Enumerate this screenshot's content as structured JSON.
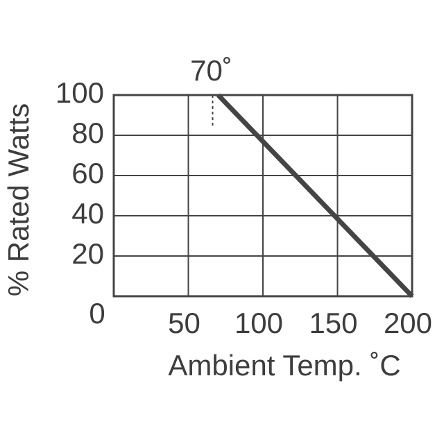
{
  "chart_data": {
    "type": "line",
    "x_label": "Ambient Temp.  ˚C",
    "y_label": "% Rated Watts",
    "xlim": [
      0,
      200
    ],
    "ylim": [
      0,
      100
    ],
    "xticks": [
      50,
      100,
      150,
      200
    ],
    "yticks": [
      0,
      20,
      40,
      60,
      80,
      100
    ],
    "grid": true,
    "series": [
      {
        "color": "#444444",
        "x": [
          70,
          200
        ],
        "values": [
          100,
          0
        ]
      }
    ],
    "annotation": {
      "text": "70˚",
      "x": 70,
      "y": 100
    }
  }
}
